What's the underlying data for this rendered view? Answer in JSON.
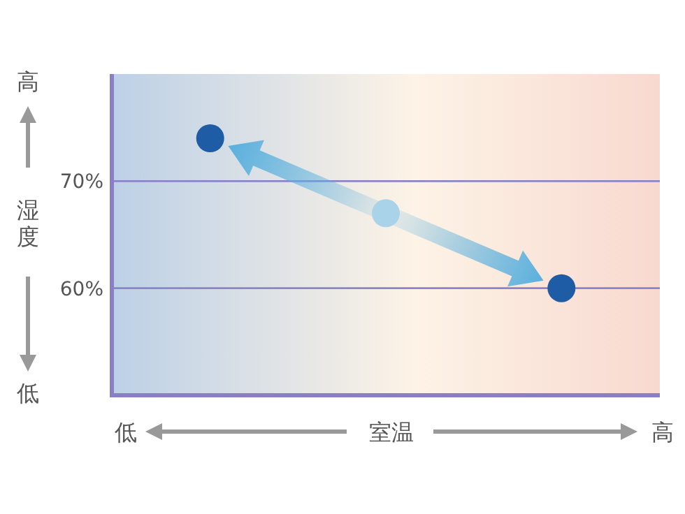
{
  "chart_data": {
    "type": "scatter",
    "categories": [
      null,
      null,
      null
    ],
    "series": [
      {
        "colors": [
          "#1f5ca6",
          "#a9d3e9",
          "#1f5ca6"
        ],
        "values": [
          74,
          67,
          60
        ]
      }
    ],
    "ylim": [
      50,
      80
    ],
    "yticks": [
      {
        "value": 60,
        "label": "60%"
      },
      {
        "value": 70,
        "label": "70%"
      }
    ],
    "grid": "y",
    "ylabel": "湿度",
    "xlabel": "室温",
    "annotations": [
      "高",
      "低",
      "低",
      "高"
    ]
  }
}
